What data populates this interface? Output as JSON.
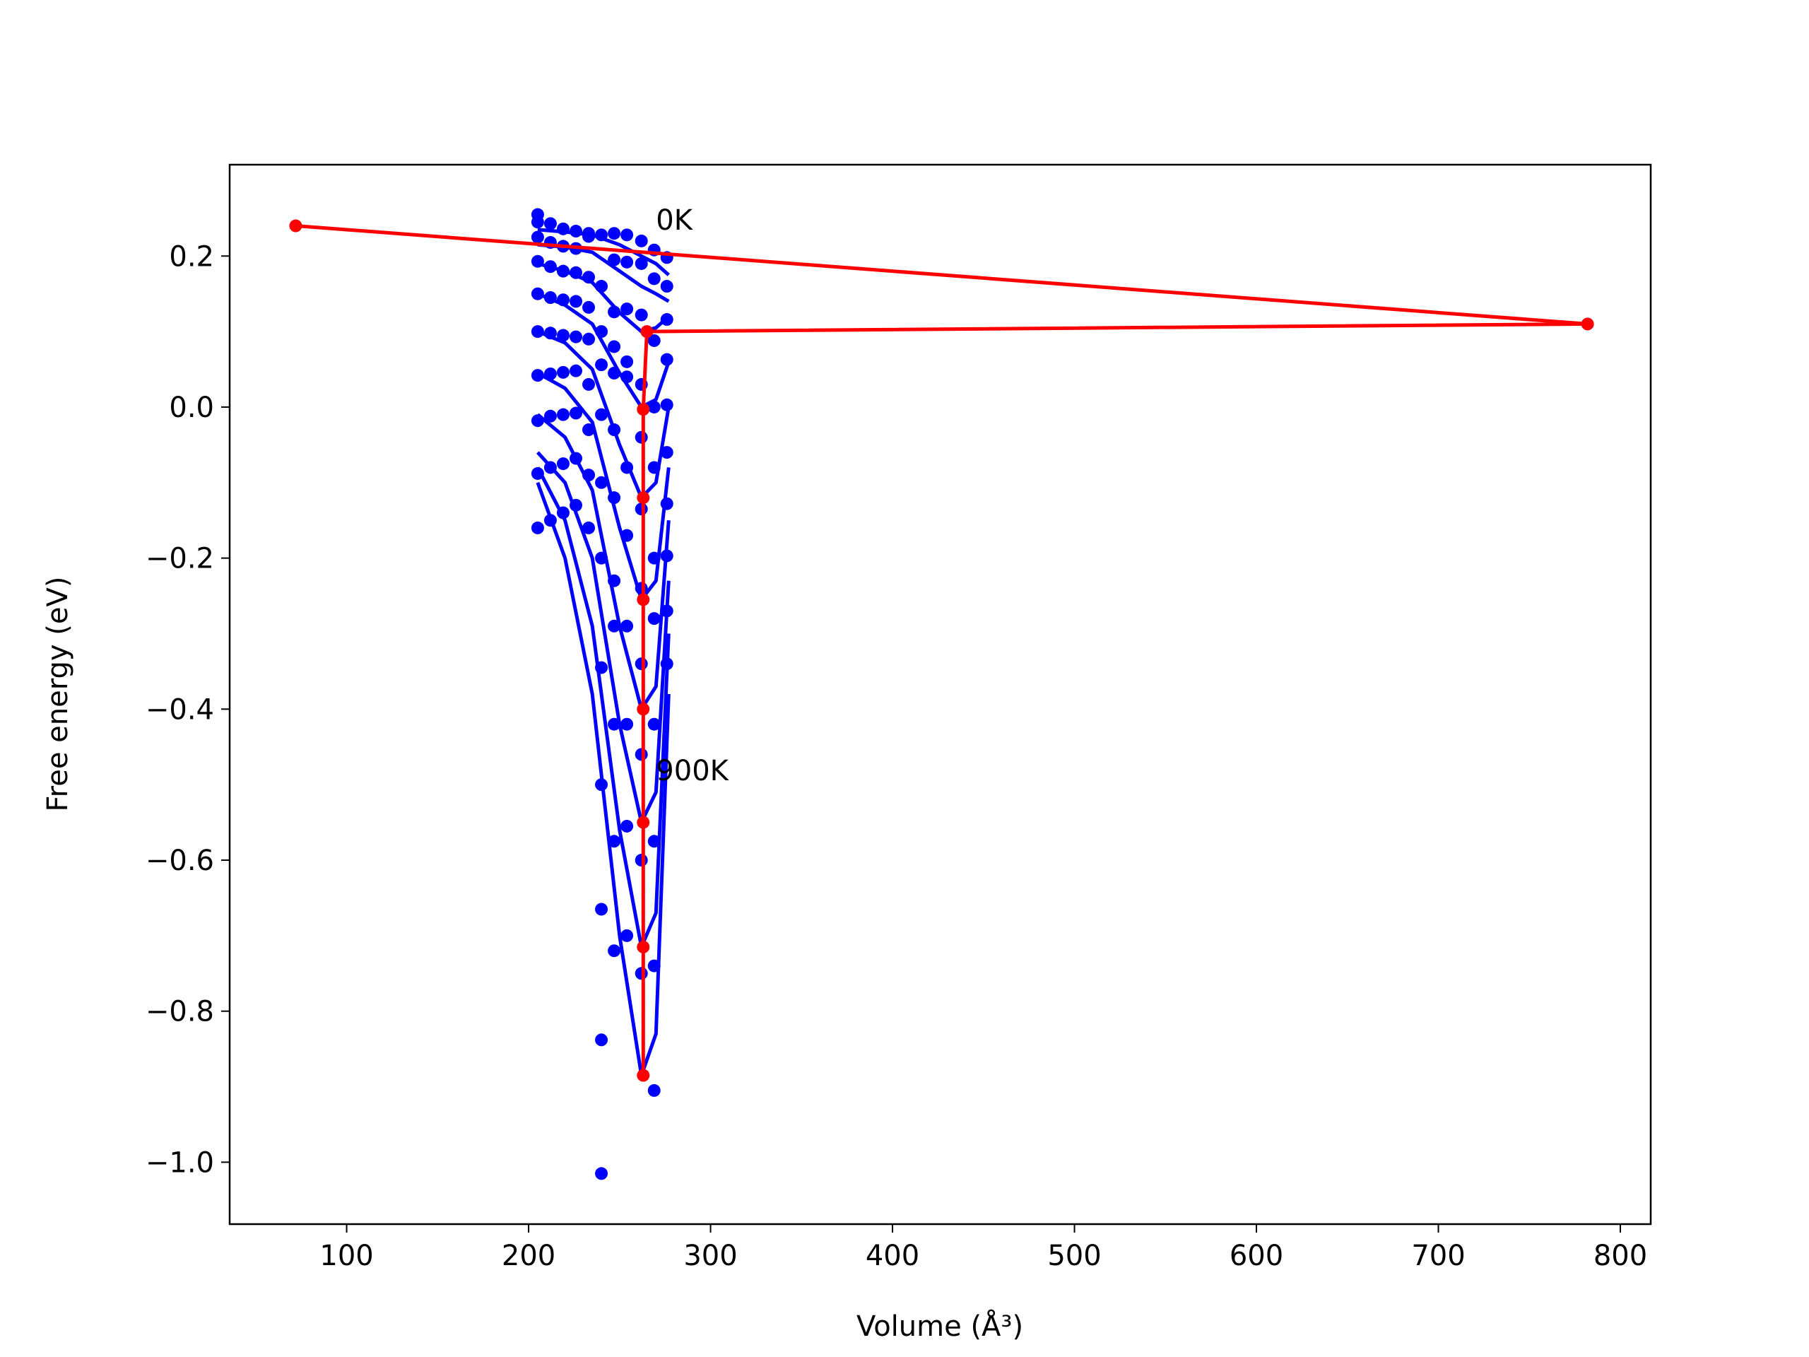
{
  "chart_data": {
    "type": "line",
    "xlabel": "Volume (Å³)",
    "ylabel": "Free energy (eV)",
    "xlim": [
      35.7,
      816.7
    ],
    "ylim": [
      -1.082,
      0.321
    ],
    "xticks": [
      100,
      200,
      300,
      400,
      500,
      600,
      700,
      800
    ],
    "yticks": [
      {
        "value": -1.0,
        "label": "−1.0"
      },
      {
        "value": -0.8,
        "label": "−0.8"
      },
      {
        "value": -0.6,
        "label": "−0.6"
      },
      {
        "value": -0.4,
        "label": "−0.4"
      },
      {
        "value": -0.2,
        "label": "−0.2"
      },
      {
        "value": 0,
        "label": "0.0"
      },
      0.2
    ],
    "grid": false,
    "annotations": [
      {
        "text": "0K",
        "x": 270,
        "y": 0.248
      },
      {
        "text": "900K",
        "x": 270,
        "y": -0.481
      }
    ],
    "series": [
      {
        "mode": "markers",
        "color": "#0000ff",
        "x": [
          205,
          205,
          205,
          205,
          205,
          205,
          205,
          205,
          205,
          205,
          212,
          212,
          212,
          212,
          212,
          212,
          212,
          212,
          212,
          219,
          219,
          219,
          219,
          219,
          219,
          219,
          219,
          219,
          226,
          226,
          226,
          226,
          226,
          226,
          226,
          226,
          226,
          233,
          233,
          233,
          233,
          233,
          233,
          233,
          233,
          233,
          240,
          240,
          240,
          240,
          240,
          240,
          240,
          240,
          240,
          240,
          240,
          240,
          247,
          247,
          247,
          247,
          247,
          247,
          247,
          247,
          247,
          247,
          247,
          247,
          254,
          254,
          254,
          254,
          254,
          254,
          254,
          254,
          254,
          254,
          254,
          262,
          262,
          262,
          262,
          262,
          262,
          262,
          262,
          262,
          262,
          262,
          269,
          269,
          269,
          269,
          269,
          269,
          269,
          269,
          269,
          269,
          269,
          276,
          276,
          276,
          276,
          276,
          276,
          276,
          276,
          276,
          276
        ],
        "values": [
          0.255,
          0.245,
          0.225,
          0.193,
          0.15,
          0.1,
          0.042,
          -0.018,
          -0.088,
          -0.16,
          0.243,
          0.218,
          0.186,
          0.145,
          0.098,
          0.044,
          -0.012,
          -0.08,
          -0.15,
          0.236,
          0.213,
          0.18,
          0.142,
          0.095,
          0.046,
          -0.01,
          -0.075,
          -0.14,
          0.233,
          0.21,
          0.178,
          0.14,
          0.093,
          0.048,
          -0.008,
          -0.068,
          -0.13,
          0.23,
          0.226,
          0.172,
          0.132,
          0.09,
          0.03,
          -0.03,
          -0.09,
          -0.16,
          0.228,
          0.16,
          0.1,
          0.056,
          -0.01,
          -0.1,
          -0.2,
          -0.345,
          -0.5,
          -0.665,
          -0.838,
          -1.015,
          0.23,
          0.195,
          0.126,
          0.08,
          0.045,
          -0.03,
          -0.12,
          -0.23,
          -0.29,
          -0.42,
          -0.575,
          -0.72,
          0.228,
          0.192,
          0.13,
          0.06,
          0.04,
          -0.08,
          -0.17,
          -0.29,
          -0.42,
          -0.555,
          -0.7,
          0.22,
          0.19,
          0.122,
          0.03,
          -0.04,
          -0.135,
          -0.24,
          -0.34,
          -0.46,
          -0.6,
          -0.75,
          0.208,
          0.17,
          0.088,
          0.0,
          -0.08,
          -0.2,
          -0.28,
          -0.42,
          -0.575,
          -0.74,
          -0.905,
          0.198,
          0.16,
          0.116,
          0.063,
          0.003,
          -0.06,
          -0.128,
          -0.197,
          -0.27,
          -0.34
        ]
      },
      {
        "mode": "lines",
        "color": "#0000ff",
        "x": [
          205,
          220,
          235,
          250,
          262,
          270,
          277
        ],
        "values": [
          0.235,
          0.232,
          0.228,
          0.215,
          0.2,
          0.19,
          0.175
        ]
      },
      {
        "mode": "lines",
        "color": "#0000ff",
        "x": [
          205,
          220,
          235,
          250,
          262,
          270,
          277
        ],
        "values": [
          0.215,
          0.212,
          0.205,
          0.18,
          0.16,
          0.15,
          0.14
        ]
      },
      {
        "mode": "lines",
        "color": "#0000ff",
        "x": [
          205,
          220,
          235,
          250,
          262,
          270,
          277
        ],
        "values": [
          0.19,
          0.18,
          0.165,
          0.125,
          0.1,
          0.105,
          0.12
        ]
      },
      {
        "mode": "lines",
        "color": "#0000ff",
        "x": [
          205,
          220,
          235,
          250,
          262,
          270,
          277
        ],
        "values": [
          0.15,
          0.135,
          0.11,
          0.045,
          0.0,
          0.01,
          0.06
        ]
      },
      {
        "mode": "lines",
        "color": "#0000ff",
        "x": [
          205,
          220,
          235,
          250,
          262,
          270,
          277
        ],
        "values": [
          0.1,
          0.085,
          0.05,
          -0.05,
          -0.12,
          -0.1,
          0.0
        ]
      },
      {
        "mode": "lines",
        "color": "#0000ff",
        "x": [
          205,
          220,
          235,
          250,
          262,
          270,
          277
        ],
        "values": [
          0.045,
          0.025,
          -0.02,
          -0.16,
          -0.255,
          -0.23,
          -0.08
        ]
      },
      {
        "mode": "lines",
        "color": "#0000ff",
        "x": [
          205,
          220,
          235,
          250,
          262,
          270,
          277
        ],
        "values": [
          -0.01,
          -0.04,
          -0.11,
          -0.29,
          -0.4,
          -0.37,
          -0.15
        ]
      },
      {
        "mode": "lines",
        "color": "#0000ff",
        "x": [
          205,
          220,
          235,
          250,
          262,
          270,
          277
        ],
        "values": [
          -0.06,
          -0.1,
          -0.2,
          -0.42,
          -0.55,
          -0.51,
          -0.23
        ]
      },
      {
        "mode": "lines",
        "color": "#0000ff",
        "x": [
          205,
          220,
          235,
          250,
          262,
          270,
          277
        ],
        "values": [
          -0.08,
          -0.15,
          -0.29,
          -0.56,
          -0.715,
          -0.67,
          -0.3
        ]
      },
      {
        "mode": "lines",
        "color": "#0000ff",
        "x": [
          205,
          220,
          235,
          250,
          262,
          270,
          277
        ],
        "values": [
          -0.1,
          -0.2,
          -0.38,
          -0.7,
          -0.885,
          -0.83,
          -0.38
        ]
      },
      {
        "mode": "lines+markers",
        "color": "#ff0000",
        "x": [
          72,
          782,
          265,
          263,
          263,
          263,
          263,
          263,
          263,
          263
        ],
        "values": [
          0.24,
          0.11,
          0.1,
          -0.003,
          -0.12,
          -0.255,
          -0.4,
          -0.55,
          -0.715,
          -0.885
        ]
      }
    ]
  }
}
